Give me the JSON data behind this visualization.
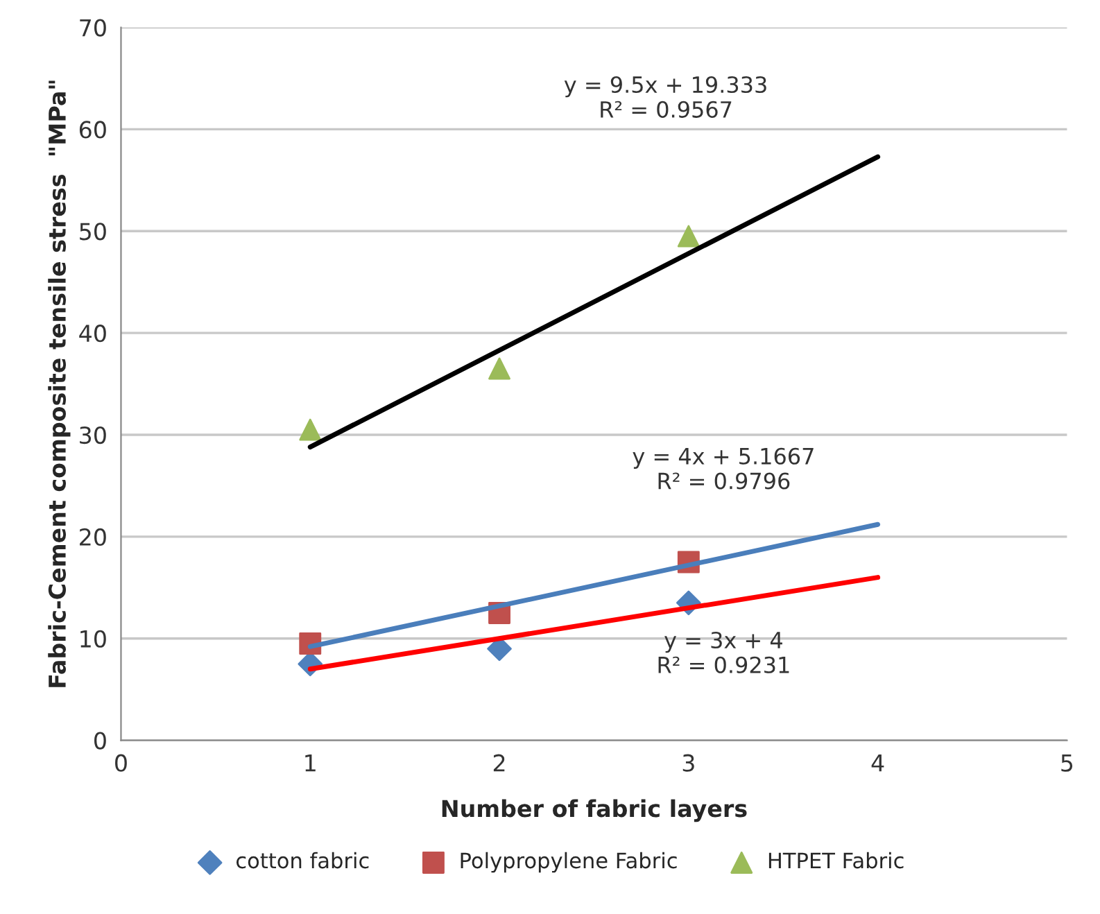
{
  "chart_data": {
    "type": "scatter",
    "xlabel": "Number of fabric layers",
    "ylabel": "Fabric-Cement composite tensile stress  \"MPa\"",
    "xlim": [
      0,
      5
    ],
    "xticks": [
      0,
      1,
      2,
      3,
      4,
      5
    ],
    "ylim": [
      0,
      70
    ],
    "yticks": [
      0,
      10,
      20,
      30,
      40,
      50,
      60,
      70
    ],
    "grid": "y",
    "legend": "bottom",
    "series": [
      {
        "name": "cotton fabric",
        "color": "#4f81bd",
        "marker": "diamond",
        "x": [
          1,
          2,
          3
        ],
        "values": [
          7.5,
          9,
          13.5
        ]
      },
      {
        "name": "Polypropylene Fabric",
        "color": "#c0504d",
        "marker": "square",
        "x": [
          1,
          2,
          3
        ],
        "values": [
          9.5,
          12.5,
          17.5
        ]
      },
      {
        "name": "HTPET Fabric",
        "color": "#9bbb59",
        "marker": "triangle",
        "x": [
          1,
          2,
          3
        ],
        "values": [
          30.5,
          36.5,
          49.5
        ]
      },
      {
        "type": "line",
        "color": "#000000",
        "x": [
          1,
          4
        ],
        "values": [
          28.8,
          57.3
        ]
      },
      {
        "type": "line",
        "color": "#4a7ebb",
        "x": [
          1,
          4
        ],
        "values": [
          9.2,
          21.2
        ]
      },
      {
        "type": "line",
        "color": "#ff0000",
        "x": [
          1,
          4
        ],
        "values": [
          7,
          16
        ]
      }
    ],
    "annotations": [
      "y = 9.5x + 19.333\nR² = 0.9567",
      "y = 4x + 5.1667\nR² = 0.9796",
      "y = 3x + 4\nR² = 0.9231"
    ]
  }
}
